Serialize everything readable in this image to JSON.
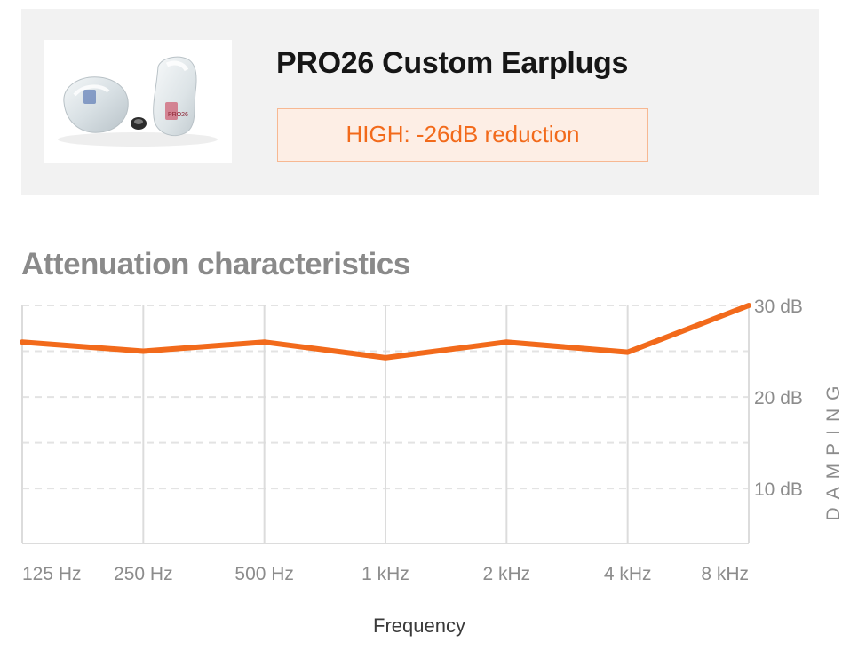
{
  "product": {
    "title": "PRO26 Custom Earplugs",
    "badge": "HIGH: -26dB reduction",
    "image_icon": "earplugs-photo",
    "image_print": "PRO26"
  },
  "section_title": "Attenuation characteristics",
  "chart_data": {
    "type": "line",
    "title": "Attenuation characteristics",
    "xlabel": "Frequency",
    "ylabel": "DAMPING",
    "categories": [
      "125 Hz",
      "250 Hz",
      "500 Hz",
      "1 kHz",
      "2 kHz",
      "4 kHz",
      "8 kHz"
    ],
    "series": [
      {
        "values": [
          26,
          25,
          26,
          24.3,
          26,
          24.9,
          30
        ]
      }
    ],
    "ylim": [
      4,
      30
    ],
    "yticks": [
      10,
      20,
      30
    ],
    "ytick_labels": [
      "10 dB",
      "20 dB",
      "30 dB"
    ],
    "grid": true,
    "line_color": "#f26a1b",
    "grid_color": "#dcdcdc"
  }
}
